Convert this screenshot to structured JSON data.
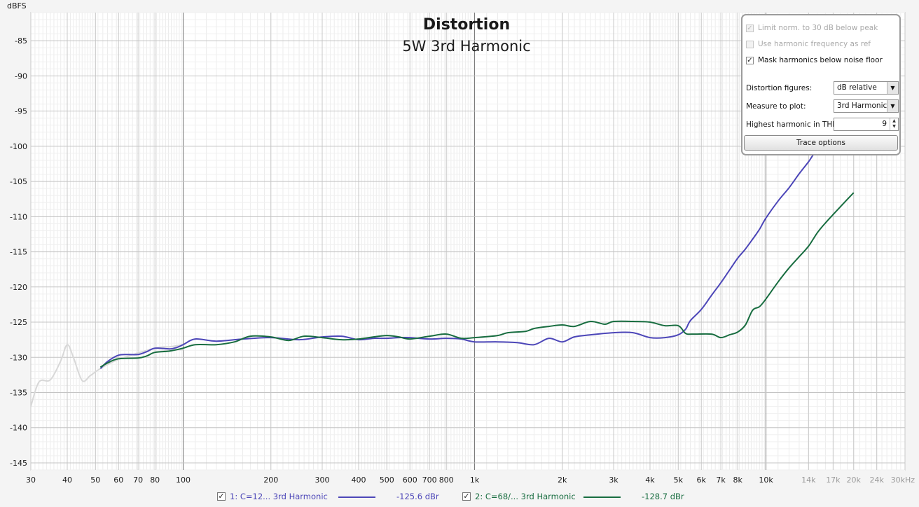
{
  "chart_data": {
    "type": "line",
    "title": "Distortion",
    "subtitle": "5W 3rd Harmonic",
    "ylabel": "dBFS",
    "xscale": "log",
    "xlim": [
      30,
      30000
    ],
    "ylim": [
      -146,
      -81
    ],
    "yticks": [
      -85,
      -90,
      -95,
      -100,
      -105,
      -110,
      -115,
      -120,
      -125,
      -130,
      -135,
      -140,
      -145
    ],
    "xticks": [
      {
        "value": 30,
        "label": "30"
      },
      {
        "value": 40,
        "label": "40"
      },
      {
        "value": 50,
        "label": "50"
      },
      {
        "value": 60,
        "label": "60"
      },
      {
        "value": 70,
        "label": "70"
      },
      {
        "value": 80,
        "label": "80"
      },
      {
        "value": 100,
        "label": "100"
      },
      {
        "value": 200,
        "label": "200"
      },
      {
        "value": 300,
        "label": "300"
      },
      {
        "value": 400,
        "label": "400"
      },
      {
        "value": 500,
        "label": "500"
      },
      {
        "value": 600,
        "label": "600"
      },
      {
        "value": 700,
        "label": "700"
      },
      {
        "value": 800,
        "label": "800"
      },
      {
        "value": 1000,
        "label": "1k"
      },
      {
        "value": 2000,
        "label": "2k"
      },
      {
        "value": 3000,
        "label": "3k"
      },
      {
        "value": 4000,
        "label": "4k"
      },
      {
        "value": 5000,
        "label": "5k"
      },
      {
        "value": 6000,
        "label": "6k"
      },
      {
        "value": 7000,
        "label": "7k"
      },
      {
        "value": 8000,
        "label": "8k"
      },
      {
        "value": 10000,
        "label": "10k"
      },
      {
        "value": 14000,
        "label": "14k"
      },
      {
        "value": 17000,
        "label": "17k"
      },
      {
        "value": 20000,
        "label": "20k"
      },
      {
        "value": 24000,
        "label": "24k"
      },
      {
        "value": 30000,
        "label": "30kHz"
      }
    ],
    "dim_xticks": [
      "14k",
      "17k",
      "20k",
      "24k",
      "30kHz"
    ],
    "grid": true,
    "series": [
      {
        "name": "1: C=12... 3rd Harmonic",
        "value_label": "-125.6 dBr",
        "color": "#4c46b8",
        "masked_color": "#d8d8d8",
        "masked": [
          [
            30,
            -137
          ],
          [
            32,
            -133.5
          ],
          [
            35,
            -133.2
          ],
          [
            38,
            -130.5
          ],
          [
            40,
            -128.2
          ],
          [
            42,
            -130
          ],
          [
            45,
            -133.3
          ],
          [
            48,
            -132.6
          ],
          [
            52,
            -131.6
          ],
          [
            60,
            -130.3
          ],
          [
            80,
            -128.7
          ],
          [
            90,
            -128.5
          ],
          [
            100,
            -128.2
          ]
        ],
        "points": [
          [
            52,
            -131.6
          ],
          [
            55,
            -130.6
          ],
          [
            60,
            -129.7
          ],
          [
            65,
            -129.6
          ],
          [
            70,
            -129.6
          ],
          [
            75,
            -129.2
          ],
          [
            80,
            -128.7
          ],
          [
            90,
            -128.8
          ],
          [
            95,
            -128.6
          ],
          [
            100,
            -128.2
          ],
          [
            110,
            -127.4
          ],
          [
            130,
            -127.7
          ],
          [
            160,
            -127.4
          ],
          [
            200,
            -127.2
          ],
          [
            250,
            -127.5
          ],
          [
            300,
            -127.1
          ],
          [
            350,
            -127.0
          ],
          [
            400,
            -127.5
          ],
          [
            450,
            -127.3
          ],
          [
            500,
            -127.3
          ],
          [
            550,
            -127.2
          ],
          [
            600,
            -127.2
          ],
          [
            700,
            -127.4
          ],
          [
            800,
            -127.3
          ],
          [
            900,
            -127.4
          ],
          [
            1000,
            -127.8
          ],
          [
            1200,
            -127.8
          ],
          [
            1400,
            -127.9
          ],
          [
            1600,
            -128.2
          ],
          [
            1800,
            -127.3
          ],
          [
            2000,
            -127.8
          ],
          [
            2200,
            -127.1
          ],
          [
            2500,
            -126.8
          ],
          [
            3000,
            -126.5
          ],
          [
            3500,
            -126.5
          ],
          [
            4000,
            -127.2
          ],
          [
            4500,
            -127.2
          ],
          [
            5000,
            -126.8
          ],
          [
            5300,
            -126.0
          ],
          [
            5500,
            -124.8
          ],
          [
            6000,
            -123.2
          ],
          [
            6500,
            -121.2
          ],
          [
            7000,
            -119.4
          ],
          [
            7500,
            -117.6
          ],
          [
            8000,
            -115.9
          ],
          [
            8500,
            -114.6
          ],
          [
            9000,
            -113.2
          ],
          [
            9500,
            -111.8
          ],
          [
            10000,
            -110.2
          ],
          [
            11000,
            -107.8
          ],
          [
            12000,
            -105.9
          ],
          [
            13000,
            -103.9
          ],
          [
            14000,
            -102.2
          ],
          [
            15000,
            -100.4
          ],
          [
            17000,
            -97.7
          ],
          [
            20000,
            -94.5
          ],
          [
            24000,
            -91.8
          ]
        ]
      },
      {
        "name": "2: C=68/... 3rd Harmonic",
        "value_label": "-128.7 dBr",
        "color": "#186d40",
        "masked_color": "#d8d8d8",
        "masked": [
          [
            75,
            -129.8
          ],
          [
            80,
            -129.3
          ],
          [
            90,
            -129.0
          ],
          [
            100,
            -128.9
          ]
        ],
        "points": [
          [
            52,
            -131.4
          ],
          [
            55,
            -130.8
          ],
          [
            60,
            -130.2
          ],
          [
            70,
            -130.1
          ],
          [
            75,
            -129.8
          ],
          [
            80,
            -129.3
          ],
          [
            90,
            -129.1
          ],
          [
            100,
            -128.7
          ],
          [
            110,
            -128.2
          ],
          [
            130,
            -128.2
          ],
          [
            150,
            -127.8
          ],
          [
            170,
            -127.0
          ],
          [
            200,
            -127.1
          ],
          [
            230,
            -127.6
          ],
          [
            260,
            -127.0
          ],
          [
            300,
            -127.2
          ],
          [
            350,
            -127.5
          ],
          [
            400,
            -127.4
          ],
          [
            450,
            -127.1
          ],
          [
            500,
            -126.9
          ],
          [
            550,
            -127.1
          ],
          [
            600,
            -127.4
          ],
          [
            700,
            -127.0
          ],
          [
            800,
            -126.7
          ],
          [
            900,
            -127.3
          ],
          [
            1000,
            -127.2
          ],
          [
            1200,
            -126.9
          ],
          [
            1300,
            -126.5
          ],
          [
            1500,
            -126.3
          ],
          [
            1600,
            -125.9
          ],
          [
            1800,
            -125.6
          ],
          [
            2000,
            -125.4
          ],
          [
            2200,
            -125.6
          ],
          [
            2500,
            -124.9
          ],
          [
            2800,
            -125.3
          ],
          [
            3000,
            -124.9
          ],
          [
            3500,
            -124.9
          ],
          [
            4000,
            -125.0
          ],
          [
            4500,
            -125.5
          ],
          [
            5000,
            -125.5
          ],
          [
            5300,
            -126.6
          ],
          [
            5600,
            -126.7
          ],
          [
            6500,
            -126.7
          ],
          [
            7000,
            -127.2
          ],
          [
            7500,
            -126.8
          ],
          [
            8000,
            -126.4
          ],
          [
            8500,
            -125.4
          ],
          [
            9000,
            -123.3
          ],
          [
            9500,
            -122.8
          ],
          [
            10000,
            -121.7
          ],
          [
            11000,
            -119.3
          ],
          [
            12000,
            -117.3
          ],
          [
            13000,
            -115.7
          ],
          [
            14000,
            -114.2
          ],
          [
            15000,
            -112.3
          ],
          [
            16000,
            -110.9
          ],
          [
            18000,
            -108.6
          ],
          [
            20000,
            -106.6
          ]
        ]
      }
    ]
  },
  "options_panel": {
    "limit_norm_label": "Limit norm. to 30 dB below peak",
    "use_harmonic_freq_label": "Use harmonic frequency as ref",
    "mask_harmonics_label": "Mask harmonics below noise floor",
    "check_mark": "✓",
    "distortion_figures_label": "Distortion figures:",
    "distortion_figures_value": "dB relative",
    "measure_to_plot_label": "Measure to plot:",
    "measure_to_plot_value": "3rd Harmonic",
    "highest_harmonic_label": "Highest harmonic in THD:",
    "highest_harmonic_value": "9",
    "trace_options_label": "Trace options"
  },
  "legend": {
    "check_mark": "✓",
    "item1_name": "1: C=12... 3rd Harmonic",
    "item1_value": "-125.6 dBr",
    "item2_name": "2: C=68/... 3rd Harmonic",
    "item2_value": "-128.7 dBr"
  }
}
